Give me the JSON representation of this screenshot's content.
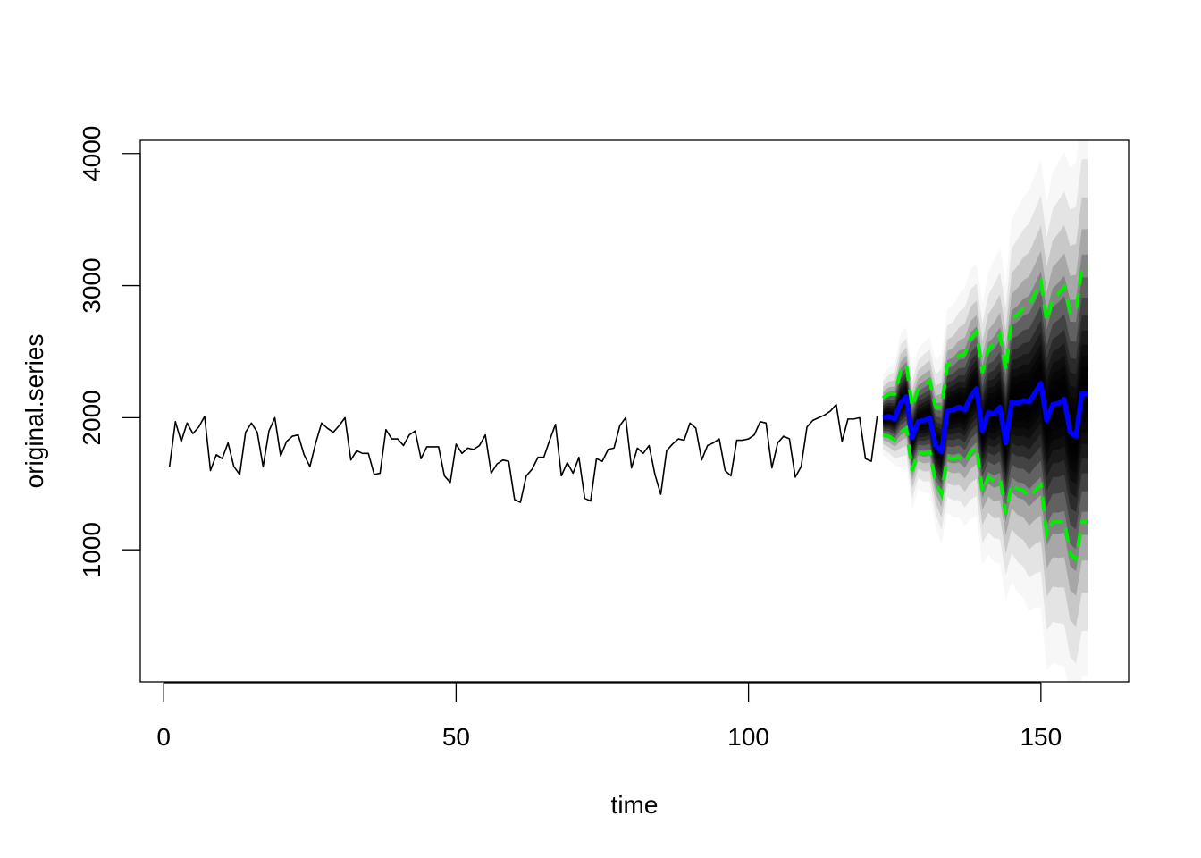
{
  "chart_data": {
    "type": "line",
    "title": "",
    "xlabel": "time",
    "ylabel": "original.series",
    "xlim": [
      -4,
      165
    ],
    "ylim": [
      0,
      4100
    ],
    "x_ticks": [
      0,
      50,
      100,
      150
    ],
    "y_ticks": [
      1000,
      2000,
      3000,
      4000
    ],
    "grid": false,
    "legend": "none",
    "colors": {
      "observed": "#000000",
      "forecast_mean": "#0000ff",
      "forecast_interval": "#00ee00",
      "fan": "#000000"
    },
    "series": [
      {
        "role": "observed",
        "x": [
          1,
          2,
          3,
          4,
          5,
          6,
          7,
          8,
          9,
          10,
          11,
          12,
          13,
          14,
          15,
          16,
          17,
          18,
          19,
          20,
          21,
          22,
          23,
          24,
          25,
          26,
          27,
          28,
          29,
          30,
          31,
          32,
          33,
          34,
          35,
          36,
          37,
          38,
          39,
          40,
          41,
          42,
          43,
          44,
          45,
          46,
          47,
          48,
          49,
          50,
          51,
          52,
          53,
          54,
          55,
          56,
          57,
          58,
          59,
          60,
          61,
          62,
          63,
          64,
          65,
          66,
          67,
          68,
          69,
          70,
          71,
          72,
          73,
          74,
          75,
          76,
          77,
          78,
          79,
          80,
          81,
          82,
          83,
          84,
          85,
          86,
          87,
          88,
          89,
          90,
          91,
          92,
          93,
          94,
          95,
          96,
          97,
          98,
          99,
          100,
          101,
          102,
          103,
          104,
          105,
          106,
          107,
          108,
          109,
          110,
          111,
          112,
          113,
          114,
          115,
          116,
          117,
          118,
          119,
          120,
          121,
          122
        ],
        "values": [
          1630,
          1970,
          1820,
          1960,
          1880,
          1930,
          2010,
          1600,
          1720,
          1690,
          1810,
          1630,
          1570,
          1890,
          1960,
          1890,
          1630,
          1900,
          2000,
          1710,
          1820,
          1860,
          1870,
          1720,
          1630,
          1810,
          1960,
          1920,
          1890,
          1940,
          2000,
          1680,
          1750,
          1730,
          1730,
          1570,
          1580,
          1910,
          1840,
          1840,
          1790,
          1870,
          1900,
          1690,
          1780,
          1780,
          1780,
          1560,
          1510,
          1800,
          1730,
          1770,
          1760,
          1790,
          1870,
          1580,
          1650,
          1680,
          1670,
          1380,
          1360,
          1560,
          1610,
          1700,
          1700,
          1830,
          1950,
          1560,
          1660,
          1580,
          1700,
          1390,
          1370,
          1690,
          1670,
          1760,
          1770,
          1940,
          2000,
          1620,
          1770,
          1730,
          1790,
          1570,
          1420,
          1750,
          1800,
          1840,
          1830,
          1960,
          1920,
          1680,
          1790,
          1810,
          1840,
          1600,
          1560,
          1830,
          1830,
          1840,
          1870,
          1970,
          1960,
          1620,
          1810,
          1860,
          1840,
          1550,
          1630,
          1930,
          1980,
          2000,
          2020,
          2050,
          2100,
          1820,
          1990,
          1990,
          2000,
          1690,
          1670,
          2010
        ]
      },
      {
        "role": "forecast_mean",
        "x": [
          123,
          124,
          125,
          126,
          127,
          128,
          129,
          130,
          131,
          132,
          133,
          134,
          135,
          136,
          137,
          138,
          139,
          140,
          141,
          142,
          143,
          144,
          145,
          146,
          147,
          148,
          149,
          150,
          151,
          152,
          153,
          154,
          155,
          156,
          157,
          158
        ],
        "values": [
          2000,
          2010,
          1990,
          2110,
          2160,
          1850,
          1970,
          1980,
          2000,
          1790,
          1740,
          2050,
          2060,
          2080,
          2060,
          2160,
          2220,
          1900,
          2040,
          2030,
          2080,
          1810,
          2120,
          2110,
          2130,
          2120,
          2190,
          2260,
          1980,
          2100,
          2110,
          2140,
          1890,
          1860,
          2180,
          2180
        ]
      },
      {
        "role": "forecast_upper",
        "x": [
          123,
          124,
          125,
          126,
          127,
          128,
          129,
          130,
          131,
          132,
          133,
          134,
          135,
          136,
          137,
          138,
          139,
          140,
          141,
          142,
          143,
          144,
          145,
          146,
          147,
          148,
          149,
          150,
          151,
          152,
          153,
          154,
          155,
          156,
          157,
          158
        ],
        "values": [
          2150,
          2180,
          2180,
          2350,
          2400,
          2080,
          2220,
          2250,
          2280,
          2080,
          2080,
          2400,
          2420,
          2470,
          2480,
          2600,
          2650,
          2340,
          2520,
          2560,
          2630,
          2360,
          2750,
          2780,
          2830,
          2850,
          2940,
          3030,
          2730,
          2900,
          2940,
          2990,
          2800,
          2800,
          3140,
          3140
        ]
      },
      {
        "role": "forecast_lower",
        "x": [
          123,
          124,
          125,
          126,
          127,
          128,
          129,
          130,
          131,
          132,
          133,
          134,
          135,
          136,
          137,
          138,
          139,
          140,
          141,
          142,
          143,
          144,
          145,
          146,
          147,
          148,
          149,
          150,
          151,
          152,
          153,
          154,
          155,
          156,
          157,
          158
        ],
        "values": [
          1870,
          1860,
          1830,
          1890,
          1920,
          1600,
          1740,
          1730,
          1740,
          1510,
          1420,
          1700,
          1690,
          1700,
          1660,
          1740,
          1780,
          1440,
          1550,
          1520,
          1540,
          1270,
          1500,
          1460,
          1450,
          1400,
          1450,
          1490,
          1120,
          1210,
          1210,
          1220,
          970,
          930,
          1210,
          1210
        ]
      }
    ]
  }
}
